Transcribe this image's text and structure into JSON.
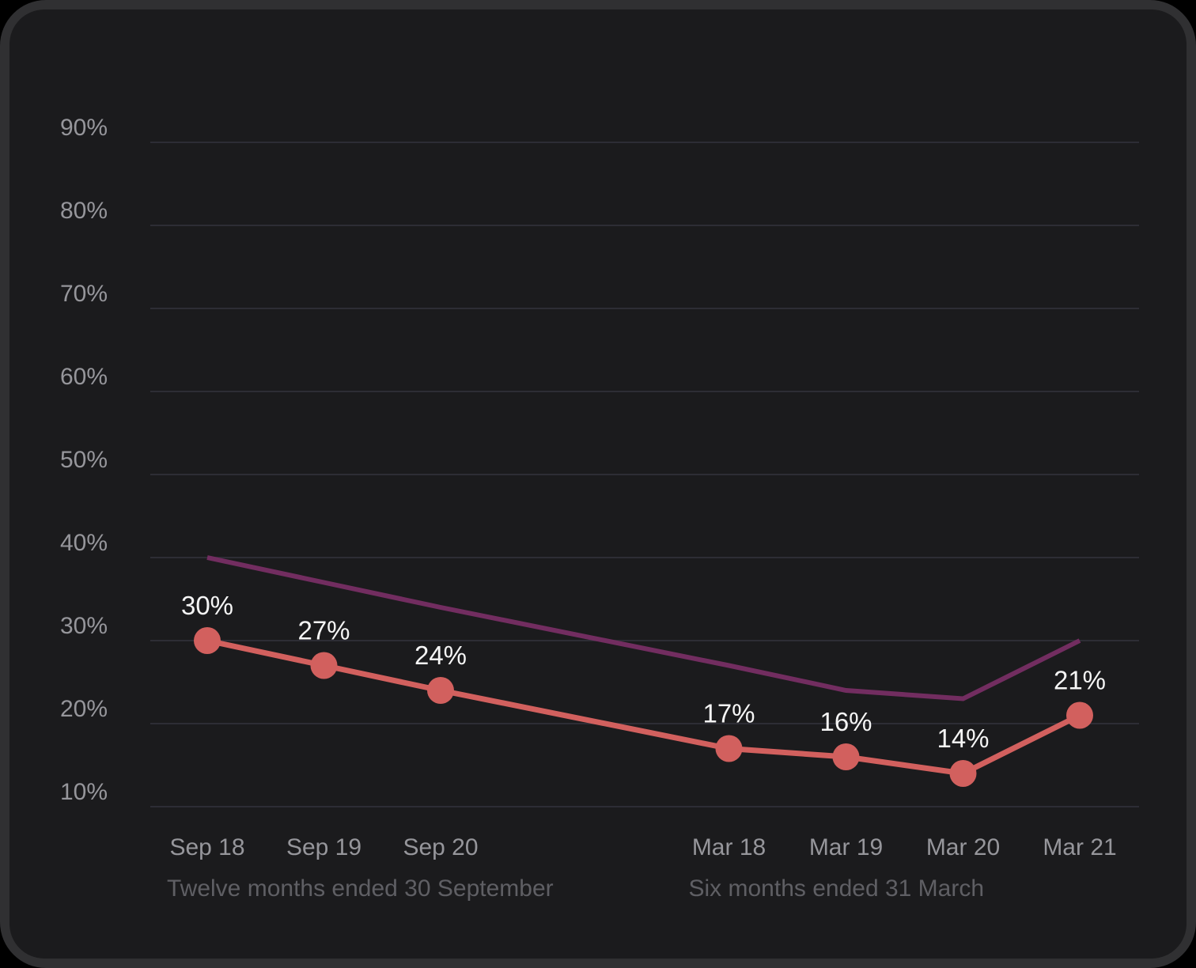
{
  "theme": {
    "page_bg": "#000000",
    "frame_bg": "#303032",
    "card_bg": "#1b1b1d",
    "grid_color": "#2d2d35",
    "tick_label_color": "#96969b",
    "group_label_color": "#5f5f64",
    "point_label_color": "#f5f5f5"
  },
  "chart_data": {
    "type": "line",
    "title": "",
    "xlabel": "",
    "ylabel": "",
    "grid": true,
    "legend": false,
    "ylim": [
      10,
      90
    ],
    "yticks": [
      90,
      80,
      70,
      60,
      50,
      40,
      30,
      20,
      10
    ],
    "ytick_labels": [
      "90%",
      "80%",
      "70%",
      "60%",
      "50%",
      "40%",
      "30%",
      "20%",
      "10%"
    ],
    "categories": [
      "Sep 18",
      "Sep 19",
      "Sep 20",
      "Mar 18",
      "Mar 19",
      "Mar 20",
      "Mar 21"
    ],
    "series": [
      {
        "name": "highlighted-series",
        "color": "#d2605e",
        "markers": true,
        "values": [
          30,
          27,
          24,
          17,
          16,
          14,
          21
        ],
        "point_labels": [
          "30%",
          "27%",
          "24%",
          "17%",
          "16%",
          "14%",
          "21%"
        ]
      },
      {
        "name": "comparison-series",
        "color": "#722d60",
        "markers": false,
        "values": [
          40,
          37,
          34,
          27,
          24,
          23,
          30
        ],
        "point_labels": []
      }
    ],
    "group_labels": [
      {
        "text": "Twelve months ended 30 September",
        "start_category": "Sep 18"
      },
      {
        "text": "Six months ended 31 March",
        "start_category": "Mar 18"
      }
    ]
  }
}
